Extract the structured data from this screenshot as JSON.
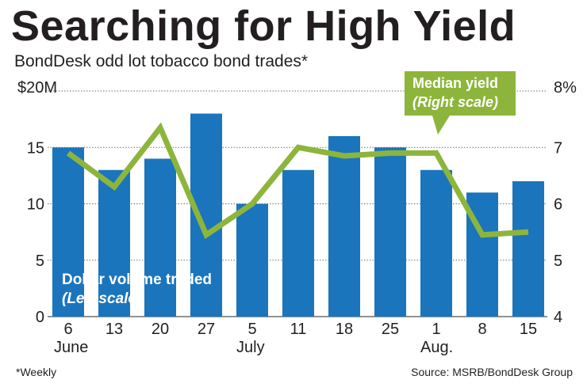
{
  "title": "Searching for High Yield",
  "subtitle": "BondDesk odd lot tobacco bond trades*",
  "footnote": "*Weekly",
  "source": "Source: MSRB/BondDesk Group",
  "colors": {
    "bar": "#1b75bc",
    "line": "#8db53b",
    "text": "#231f20",
    "grid": "#6d6e71"
  },
  "chart_data": {
    "type": "bar",
    "categories": [
      "6",
      "13",
      "20",
      "27",
      "5",
      "11",
      "18",
      "25",
      "1",
      "8",
      "15"
    ],
    "month_labels": [
      {
        "index": 0,
        "label": "June"
      },
      {
        "index": 4,
        "label": "July"
      },
      {
        "index": 8,
        "label": "Aug."
      }
    ],
    "series": [
      {
        "name": "Dollar volume traded",
        "axis": "left",
        "type": "bar",
        "values": [
          15,
          13,
          14,
          18,
          10,
          13,
          16,
          15,
          13,
          11,
          12
        ]
      },
      {
        "name": "Median yield",
        "axis": "right",
        "type": "line",
        "values": [
          6.9,
          6.3,
          7.35,
          5.45,
          6.0,
          7.0,
          6.85,
          6.9,
          6.9,
          5.45,
          5.5
        ]
      }
    ],
    "left_axis": {
      "ylim": [
        0,
        20
      ],
      "ticks": [
        "0",
        "5",
        "10",
        "15",
        "$20M"
      ],
      "tick_values": [
        0,
        5,
        10,
        15,
        20
      ]
    },
    "right_axis": {
      "ylim": [
        4,
        8
      ],
      "ticks": [
        "4",
        "5",
        "6",
        "7",
        "8%"
      ],
      "tick_values": [
        4,
        5,
        6,
        7,
        8
      ]
    },
    "annotations": {
      "line_label": "Median yield",
      "line_note": "(Right scale)",
      "bar_label": "Dollar volume traded",
      "bar_note": "(Left scale)"
    }
  }
}
